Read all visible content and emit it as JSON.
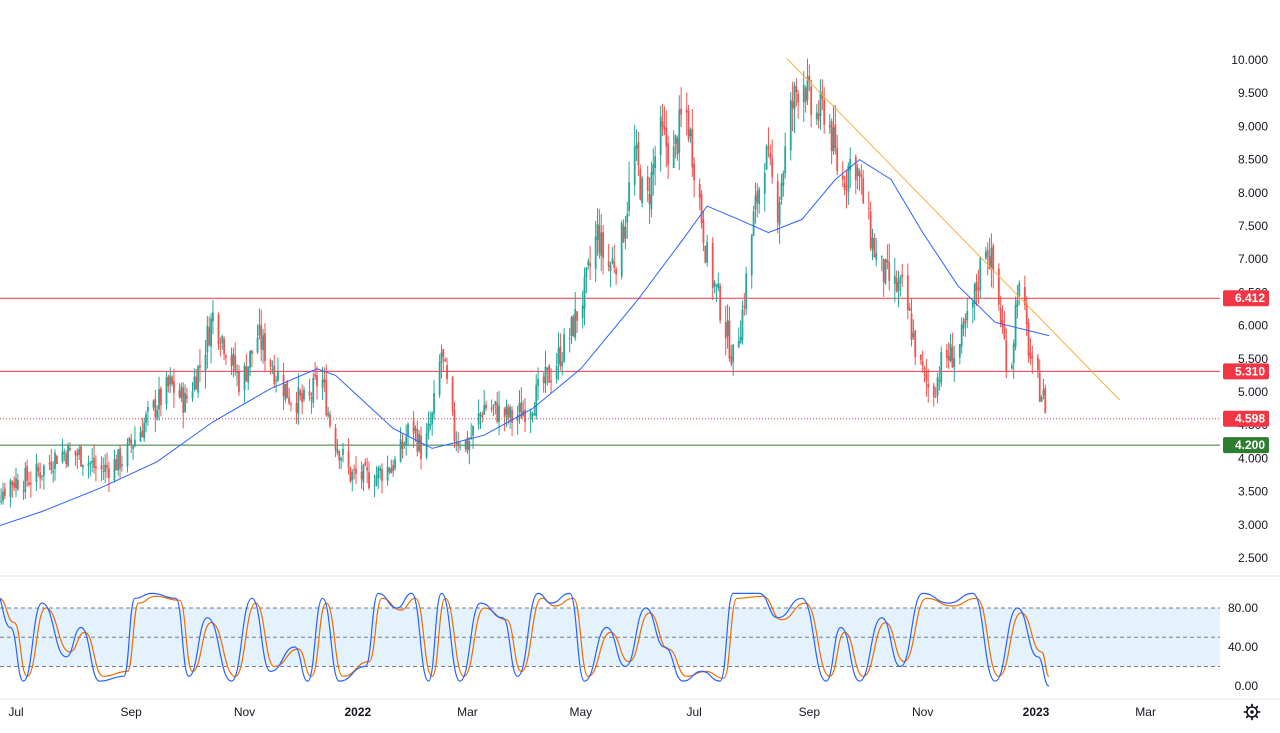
{
  "chart_data": [
    {
      "type": "candlestick",
      "colors": {
        "up": "#26a69a",
        "down": "#ef5350",
        "ma": "#2962ff",
        "trendline": "#f5b041",
        "resistance_1": "#f23645",
        "resistance_2": "#f23645",
        "support": "#2e7d32",
        "last_price": "#f23645"
      },
      "y_axis": {
        "ylim": [
          2.5,
          10.0
        ],
        "ticks": [
          "2.500",
          "3.000",
          "3.500",
          "4.000",
          "4.500",
          "5.000",
          "5.500",
          "6.000",
          "6.500",
          "7.000",
          "7.500",
          "8.000",
          "8.500",
          "9.000",
          "9.500",
          "10.000"
        ]
      },
      "x_axis": {
        "ticks": [
          {
            "label": "Jul",
            "date": "2021-07-01",
            "bold": false
          },
          {
            "label": "Sep",
            "date": "2021-09-01",
            "bold": false
          },
          {
            "label": "Nov",
            "date": "2021-11-01",
            "bold": false
          },
          {
            "label": "2022",
            "date": "2022-01-01",
            "bold": true
          },
          {
            "label": "Mar",
            "date": "2022-03-01",
            "bold": false
          },
          {
            "label": "May",
            "date": "2022-05-01",
            "bold": false
          },
          {
            "label": "Jul",
            "date": "2022-07-01",
            "bold": false
          },
          {
            "label": "Sep",
            "date": "2022-09-01",
            "bold": false
          },
          {
            "label": "Nov",
            "date": "2022-11-01",
            "bold": false
          },
          {
            "label": "2023",
            "date": "2023-01-01",
            "bold": true
          },
          {
            "label": "Mar",
            "date": "2023-03-01",
            "bold": false
          }
        ]
      },
      "horizontal_lines": [
        {
          "value": 6.412,
          "label": "6.412",
          "color": "#f23645",
          "style": "solid"
        },
        {
          "value": 5.31,
          "label": "5.310",
          "color": "#f23645",
          "style": "solid"
        },
        {
          "value": 4.598,
          "label": "4.598",
          "color": "#f23645",
          "style": "dotted"
        },
        {
          "value": 4.2,
          "label": "4.200",
          "color": "#2e7d32",
          "style": "solid"
        }
      ],
      "trendline": {
        "from": {
          "date": "2022-08-20",
          "value": 10.02
        },
        "to": {
          "date": "2023-02-15",
          "value": 4.88
        }
      },
      "price_path": [
        [
          "2021-06-15",
          3.25
        ],
        [
          "2021-06-28",
          3.65
        ],
        [
          "2021-07-10",
          3.7
        ],
        [
          "2021-07-25",
          4.1
        ],
        [
          "2021-08-05",
          4.05
        ],
        [
          "2021-08-15",
          3.8
        ],
        [
          "2021-08-28",
          4.0
        ],
        [
          "2021-09-03",
          4.3
        ],
        [
          "2021-09-12",
          4.7
        ],
        [
          "2021-09-22",
          5.1
        ],
        [
          "2021-09-30",
          4.85
        ],
        [
          "2021-10-08",
          5.4
        ],
        [
          "2021-10-15",
          6.15
        ],
        [
          "2021-10-22",
          5.7
        ],
        [
          "2021-10-30",
          5.1
        ],
        [
          "2021-11-08",
          5.85
        ],
        [
          "2021-11-15",
          5.45
        ],
        [
          "2021-11-25",
          4.95
        ],
        [
          "2021-12-05",
          4.8
        ],
        [
          "2021-12-12",
          5.3
        ],
        [
          "2021-12-18",
          4.4
        ],
        [
          "2021-12-28",
          3.75
        ],
        [
          "2022-01-08",
          3.7
        ],
        [
          "2022-01-22",
          3.95
        ],
        [
          "2022-01-30",
          4.55
        ],
        [
          "2022-02-05",
          4.05
        ],
        [
          "2022-02-10",
          4.6
        ],
        [
          "2022-02-15",
          5.6
        ],
        [
          "2022-02-22",
          4.35
        ],
        [
          "2022-03-01",
          4.2
        ],
        [
          "2022-03-10",
          4.8
        ],
        [
          "2022-03-25",
          4.6
        ],
        [
          "2022-04-05",
          4.85
        ],
        [
          "2022-04-15",
          5.3
        ],
        [
          "2022-04-25",
          5.85
        ],
        [
          "2022-05-03",
          6.5
        ],
        [
          "2022-05-10",
          7.4
        ],
        [
          "2022-05-15",
          6.85
        ],
        [
          "2022-05-22",
          7.1
        ],
        [
          "2022-05-30",
          8.6
        ],
        [
          "2022-06-05",
          7.7
        ],
        [
          "2022-06-12",
          8.9
        ],
        [
          "2022-06-20",
          8.55
        ],
        [
          "2022-06-26",
          9.35
        ],
        [
          "2022-07-02",
          8.3
        ],
        [
          "2022-07-08",
          7.0
        ],
        [
          "2022-07-15",
          6.3
        ],
        [
          "2022-07-22",
          5.5
        ],
        [
          "2022-07-27",
          6.2
        ],
        [
          "2022-08-02",
          7.6
        ],
        [
          "2022-08-08",
          8.6
        ],
        [
          "2022-08-15",
          7.8
        ],
        [
          "2022-08-22",
          9.2
        ],
        [
          "2022-08-28",
          9.85
        ],
        [
          "2022-09-03",
          9.1
        ],
        [
          "2022-09-10",
          9.3
        ],
        [
          "2022-09-18",
          8.1
        ],
        [
          "2022-09-25",
          8.6
        ],
        [
          "2022-10-02",
          7.6
        ],
        [
          "2022-10-08",
          6.9
        ],
        [
          "2022-10-16",
          6.6
        ],
        [
          "2022-10-22",
          6.5
        ],
        [
          "2022-10-30",
          5.4
        ],
        [
          "2022-11-06",
          4.95
        ],
        [
          "2022-11-12",
          5.5
        ],
        [
          "2022-11-20",
          5.6
        ],
        [
          "2022-11-28",
          6.3
        ],
        [
          "2022-12-05",
          7.3
        ],
        [
          "2022-12-10",
          6.7
        ],
        [
          "2022-12-18",
          5.15
        ],
        [
          "2022-12-22",
          6.6
        ],
        [
          "2022-12-26",
          6.1
        ],
        [
          "2022-12-30",
          5.3
        ],
        [
          "2023-01-04",
          5.0
        ],
        [
          "2023-01-08",
          4.62
        ]
      ],
      "moving_average": [
        [
          "2021-06-15",
          2.92
        ],
        [
          "2021-07-15",
          3.2
        ],
        [
          "2021-08-15",
          3.55
        ],
        [
          "2021-09-15",
          3.95
        ],
        [
          "2021-10-15",
          4.55
        ],
        [
          "2021-11-15",
          5.05
        ],
        [
          "2021-12-10",
          5.35
        ],
        [
          "2021-12-20",
          5.25
        ],
        [
          "2022-01-20",
          4.45
        ],
        [
          "2022-02-10",
          4.15
        ],
        [
          "2022-03-10",
          4.35
        ],
        [
          "2022-04-05",
          4.75
        ],
        [
          "2022-05-01",
          5.35
        ],
        [
          "2022-06-01",
          6.4
        ],
        [
          "2022-06-25",
          7.3
        ],
        [
          "2022-07-08",
          7.8
        ],
        [
          "2022-07-25",
          7.6
        ],
        [
          "2022-08-10",
          7.4
        ],
        [
          "2022-08-28",
          7.6
        ],
        [
          "2022-09-15",
          8.2
        ],
        [
          "2022-09-28",
          8.5
        ],
        [
          "2022-10-15",
          8.2
        ],
        [
          "2022-11-01",
          7.4
        ],
        [
          "2022-11-20",
          6.6
        ],
        [
          "2022-12-10",
          6.05
        ],
        [
          "2023-01-08",
          5.85
        ]
      ]
    },
    {
      "type": "line",
      "title": "",
      "y_axis": {
        "ylim": [
          0,
          100
        ],
        "ticks": [
          "0.00",
          "40.00",
          "80.00"
        ]
      },
      "bands": [
        20,
        50,
        80
      ],
      "band_fill": "#e3f2fd",
      "series": [
        {
          "color": "#2962ff",
          "values": [
            [
              "2021-06-15",
              70
            ],
            [
              "2021-06-20",
              95
            ],
            [
              "2021-06-28",
              60
            ],
            [
              "2021-07-05",
              5
            ],
            [
              "2021-07-15",
              85
            ],
            [
              "2021-07-28",
              30
            ],
            [
              "2021-08-05",
              60
            ],
            [
              "2021-08-15",
              5
            ],
            [
              "2021-08-28",
              10
            ],
            [
              "2021-09-03",
              90
            ],
            [
              "2021-09-12",
              95
            ],
            [
              "2021-09-25",
              90
            ],
            [
              "2021-10-02",
              10
            ],
            [
              "2021-10-12",
              70
            ],
            [
              "2021-10-25",
              5
            ],
            [
              "2021-11-05",
              90
            ],
            [
              "2021-11-15",
              15
            ],
            [
              "2021-11-28",
              40
            ],
            [
              "2021-12-05",
              5
            ],
            [
              "2021-12-13",
              90
            ],
            [
              "2021-12-22",
              5
            ],
            [
              "2022-01-05",
              20
            ],
            [
              "2022-01-12",
              95
            ],
            [
              "2022-01-22",
              80
            ],
            [
              "2022-01-30",
              95
            ],
            [
              "2022-02-08",
              5
            ],
            [
              "2022-02-15",
              95
            ],
            [
              "2022-02-25",
              5
            ],
            [
              "2022-03-08",
              85
            ],
            [
              "2022-03-20",
              70
            ],
            [
              "2022-03-28",
              10
            ],
            [
              "2022-04-08",
              95
            ],
            [
              "2022-04-15",
              85
            ],
            [
              "2022-04-25",
              95
            ],
            [
              "2022-05-03",
              5
            ],
            [
              "2022-05-15",
              60
            ],
            [
              "2022-05-25",
              20
            ],
            [
              "2022-06-05",
              80
            ],
            [
              "2022-06-15",
              40
            ],
            [
              "2022-06-25",
              5
            ],
            [
              "2022-07-05",
              15
            ],
            [
              "2022-07-15",
              5
            ],
            [
              "2022-07-22",
              95
            ],
            [
              "2022-08-05",
              95
            ],
            [
              "2022-08-15",
              70
            ],
            [
              "2022-08-28",
              90
            ],
            [
              "2022-09-10",
              5
            ],
            [
              "2022-09-18",
              60
            ],
            [
              "2022-09-28",
              5
            ],
            [
              "2022-10-10",
              70
            ],
            [
              "2022-10-20",
              20
            ],
            [
              "2022-11-01",
              95
            ],
            [
              "2022-11-15",
              85
            ],
            [
              "2022-11-28",
              95
            ],
            [
              "2022-12-10",
              5
            ],
            [
              "2022-12-22",
              80
            ],
            [
              "2023-01-02",
              30
            ],
            [
              "2023-01-08",
              0
            ]
          ]
        },
        {
          "color": "#ef6c00",
          "values": [
            [
              "2021-06-15",
              60
            ],
            [
              "2021-06-22",
              90
            ],
            [
              "2021-06-30",
              65
            ],
            [
              "2021-07-07",
              10
            ],
            [
              "2021-07-17",
              80
            ],
            [
              "2021-07-30",
              35
            ],
            [
              "2021-08-07",
              55
            ],
            [
              "2021-08-17",
              10
            ],
            [
              "2021-08-30",
              15
            ],
            [
              "2021-09-05",
              85
            ],
            [
              "2021-09-14",
              92
            ],
            [
              "2021-09-27",
              88
            ],
            [
              "2021-10-04",
              15
            ],
            [
              "2021-10-14",
              65
            ],
            [
              "2021-10-27",
              10
            ],
            [
              "2021-11-07",
              85
            ],
            [
              "2021-11-17",
              20
            ],
            [
              "2021-11-30",
              38
            ],
            [
              "2021-12-07",
              10
            ],
            [
              "2021-12-15",
              85
            ],
            [
              "2021-12-24",
              10
            ],
            [
              "2022-01-07",
              25
            ],
            [
              "2022-01-14",
              90
            ],
            [
              "2022-01-24",
              78
            ],
            [
              "2022-02-01",
              90
            ],
            [
              "2022-02-10",
              10
            ],
            [
              "2022-02-17",
              90
            ],
            [
              "2022-02-27",
              10
            ],
            [
              "2022-03-10",
              80
            ],
            [
              "2022-03-22",
              68
            ],
            [
              "2022-03-30",
              15
            ],
            [
              "2022-04-10",
              90
            ],
            [
              "2022-04-17",
              82
            ],
            [
              "2022-04-27",
              90
            ],
            [
              "2022-05-05",
              10
            ],
            [
              "2022-05-17",
              55
            ],
            [
              "2022-05-27",
              25
            ],
            [
              "2022-06-07",
              75
            ],
            [
              "2022-06-17",
              38
            ],
            [
              "2022-06-27",
              10
            ],
            [
              "2022-07-07",
              15
            ],
            [
              "2022-07-17",
              8
            ],
            [
              "2022-07-24",
              90
            ],
            [
              "2022-08-07",
              92
            ],
            [
              "2022-08-17",
              68
            ],
            [
              "2022-08-30",
              85
            ],
            [
              "2022-09-12",
              10
            ],
            [
              "2022-09-20",
              55
            ],
            [
              "2022-09-30",
              10
            ],
            [
              "2022-10-12",
              65
            ],
            [
              "2022-10-22",
              25
            ],
            [
              "2022-11-03",
              90
            ],
            [
              "2022-11-17",
              82
            ],
            [
              "2022-11-30",
              90
            ],
            [
              "2022-12-12",
              10
            ],
            [
              "2022-12-24",
              75
            ],
            [
              "2023-01-04",
              35
            ],
            [
              "2023-01-08",
              10
            ]
          ]
        }
      ]
    }
  ],
  "icons": {
    "settings": "gear-icon"
  }
}
